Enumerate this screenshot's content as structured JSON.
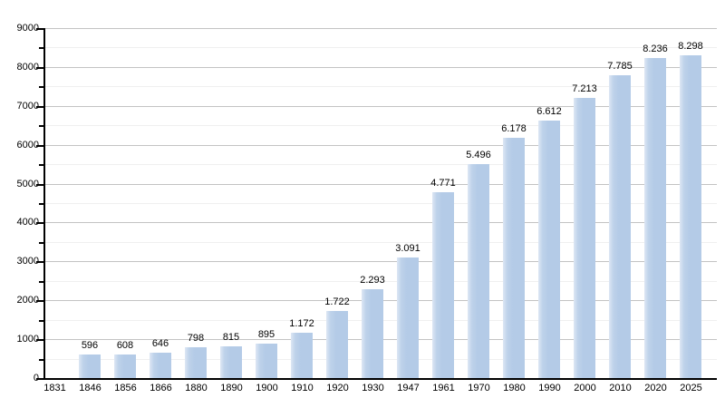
{
  "chart_data": {
    "type": "bar",
    "title": "",
    "xlabel": "",
    "ylabel": "",
    "categories": [
      "1831",
      "1846",
      "1856",
      "1866",
      "1880",
      "1890",
      "1900",
      "1910",
      "1920",
      "1930",
      "1947",
      "1961",
      "1970",
      "1980",
      "1990",
      "2000",
      "2010",
      "2020",
      "2025"
    ],
    "values": [
      null,
      596,
      608,
      646,
      798,
      815,
      895,
      1172,
      1722,
      2293,
      3091,
      4771,
      5496,
      6178,
      6612,
      7213,
      7785,
      8236,
      8298
    ],
    "value_labels": [
      "",
      "596",
      "608",
      "646",
      "798",
      "815",
      "895",
      "1.172",
      "1.722",
      "2.293",
      "3.091",
      "4.771",
      "5.496",
      "6.178",
      "6.612",
      "7.213",
      "7.785",
      "8.236",
      "8.298"
    ],
    "ylim": [
      0,
      9000
    ],
    "ytick_major_interval": 1000,
    "ytick_minor_interval": 500,
    "ytick_labels": [
      "0",
      "1000",
      "2000",
      "3000",
      "4000",
      "5000",
      "6000",
      "7000",
      "8000",
      "9000"
    ],
    "grid": "major and minor horizontal gridlines",
    "legend_position": "none"
  },
  "colors": {
    "bar_fill": "#b4cbe7",
    "bar_fill_highlight": "#dde7f4",
    "major_gridline": "#c3c3c3",
    "minor_gridline": "#efefef",
    "axis": "#000000",
    "text": "#000000",
    "background": "#ffffff"
  }
}
